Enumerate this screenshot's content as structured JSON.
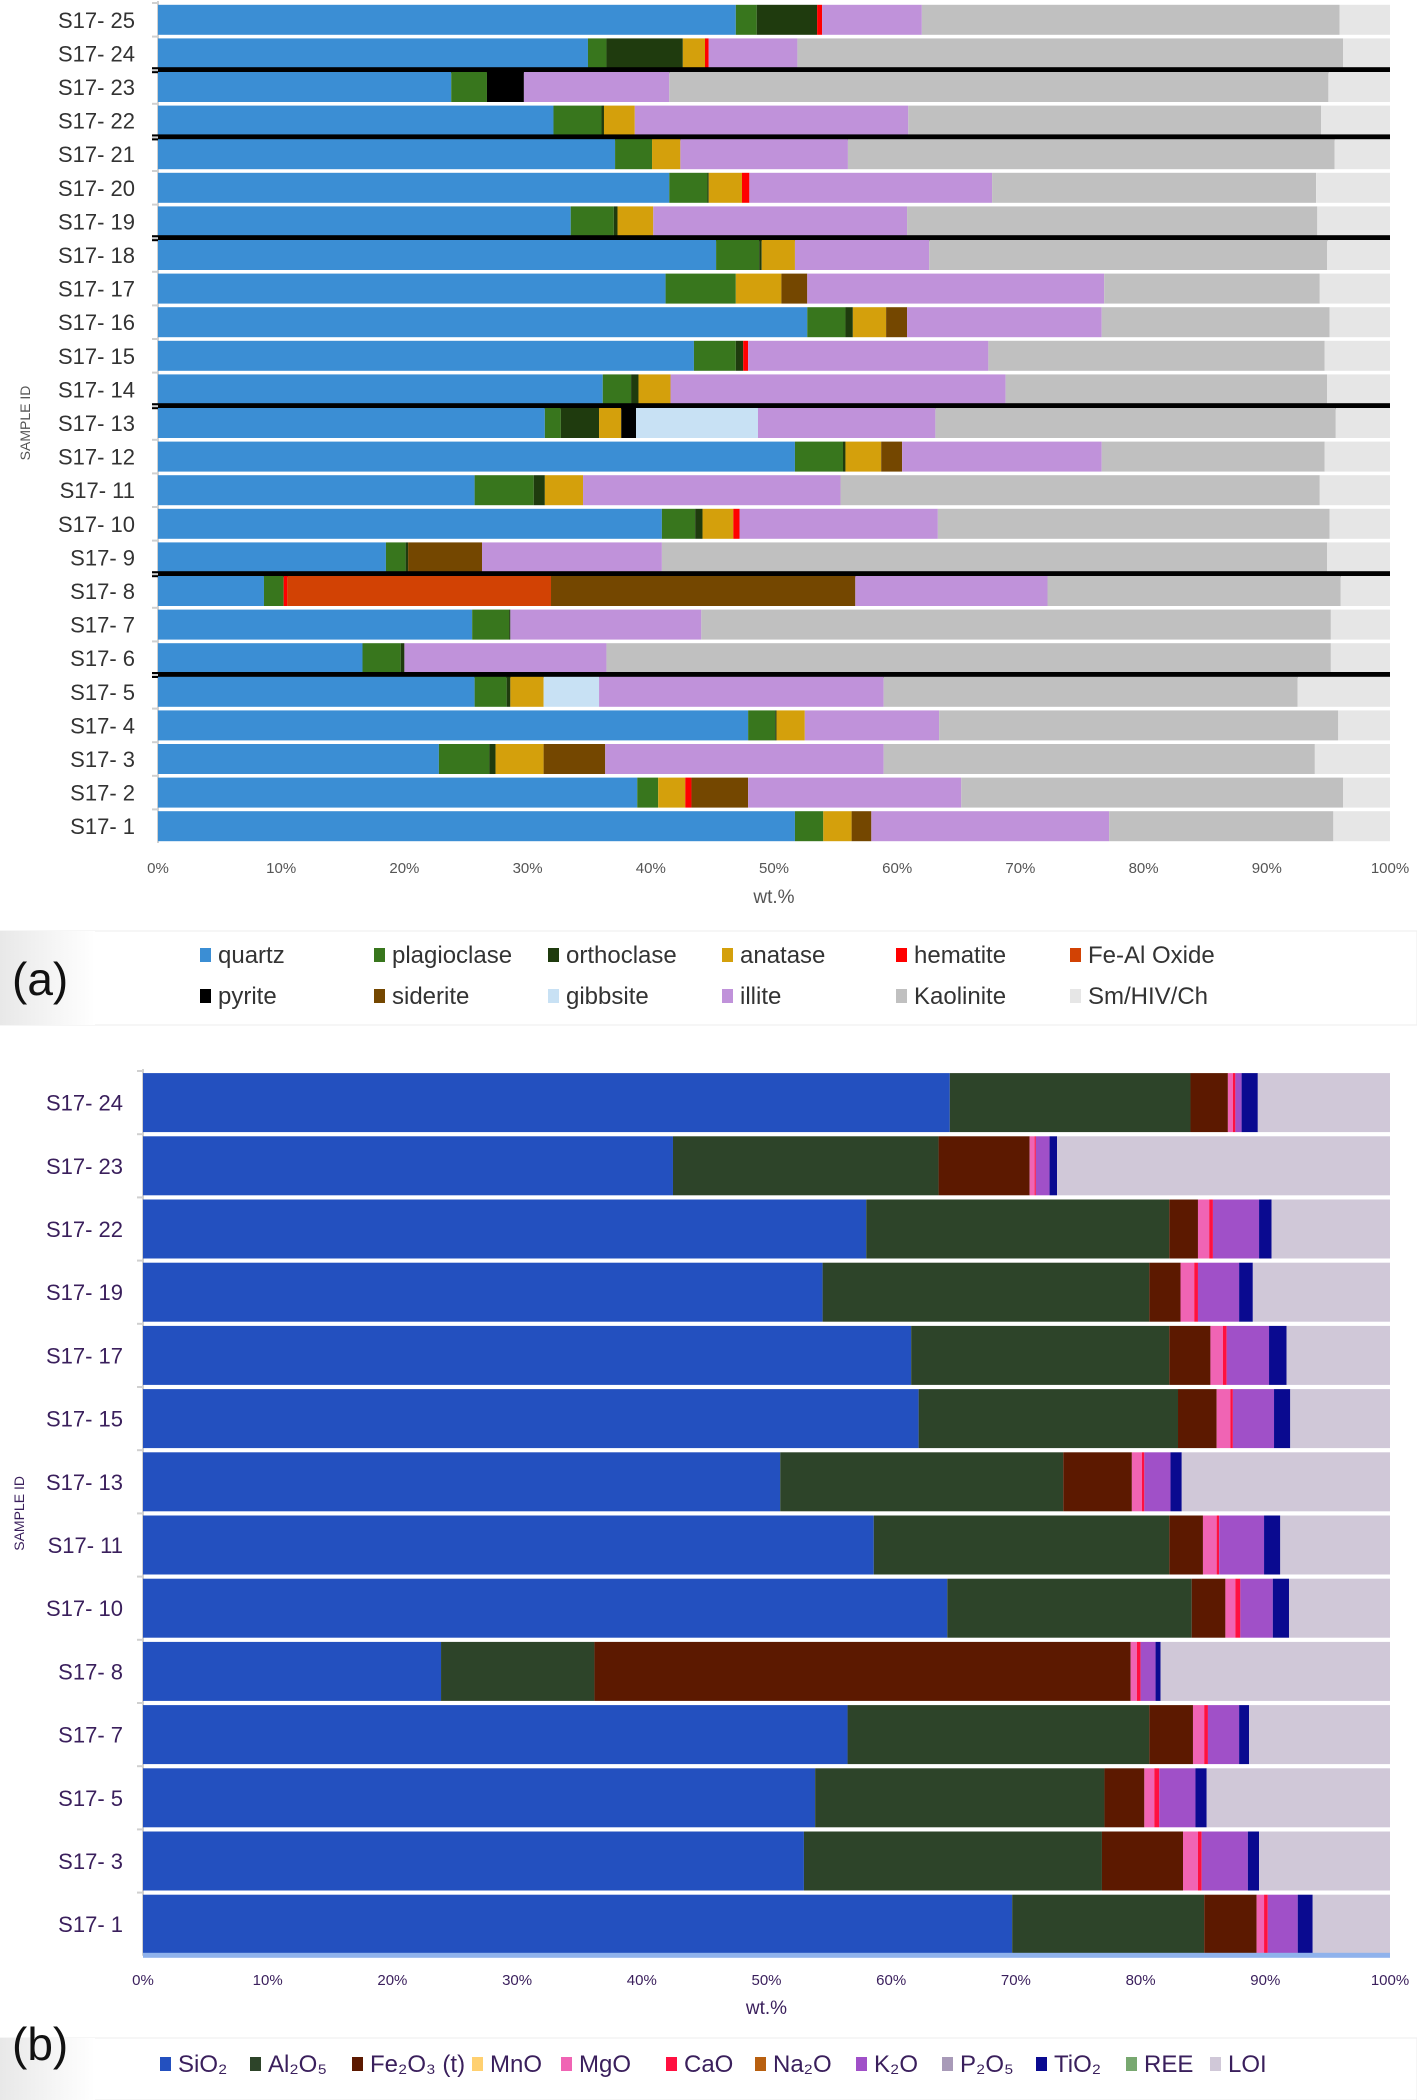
{
  "chart_data": [
    {
      "panel_label": "(a)",
      "type": "bar",
      "orientation": "horizontal",
      "stacked": true,
      "percent_stacked": true,
      "xlabel": "wt.%",
      "ylabel": "SAMPLE ID",
      "xlim": [
        0,
        100
      ],
      "xticks": [
        "0%",
        "10%",
        "20%",
        "30%",
        "40%",
        "50%",
        "60%",
        "70%",
        "80%",
        "90%",
        "100%"
      ],
      "legend_position": "bottom",
      "group_separators_after": [
        "S17- 24",
        "S17- 22",
        "S17- 19",
        "S17- 14",
        "S17- 9",
        "S17- 6"
      ],
      "categories": [
        "S17- 25",
        "S17- 24",
        "S17- 23",
        "S17- 22",
        "S17- 21",
        "S17- 20",
        "S17- 19",
        "S17- 18",
        "S17- 17",
        "S17- 16",
        "S17- 15",
        "S17- 14",
        "S17- 13",
        "S17- 12",
        "S17- 11",
        "S17- 10",
        "S17- 9",
        "S17- 8",
        "S17- 7",
        "S17- 6",
        "S17- 5",
        "S17- 4",
        "S17- 3",
        "S17- 2",
        "S17- 1"
      ],
      "series": [
        {
          "name": "quartz",
          "color": "#3b8ed4",
          "values": [
            46.9,
            34.9,
            23.8,
            32.1,
            37.1,
            41.5,
            33.5,
            45.3,
            41.2,
            52.7,
            43.5,
            36.1,
            31.4,
            51.7,
            25.7,
            40.9,
            18.5,
            8.6,
            25.5,
            16.6,
            25.7,
            47.9,
            22.8,
            38.9,
            51.7
          ]
        },
        {
          "name": "plagioclase",
          "color": "#38761d",
          "values": [
            1.7,
            1.5,
            2.9,
            3.9,
            3.0,
            3.1,
            3.5,
            3.5,
            5.7,
            3.1,
            3.4,
            2.3,
            1.3,
            3.9,
            4.8,
            2.7,
            1.6,
            1.6,
            3.0,
            3.1,
            2.6,
            2.2,
            4.1,
            1.7,
            2.3
          ]
        },
        {
          "name": "orthoclase",
          "color": "#1f3b0e",
          "values": [
            4.9,
            6.2,
            0,
            0.2,
            0,
            0.1,
            0.3,
            0.2,
            0,
            0.6,
            0.6,
            0.6,
            3.1,
            0.2,
            0.9,
            0.6,
            0.2,
            0,
            0.1,
            0.3,
            0.3,
            0.1,
            0.5,
            0,
            0
          ]
        },
        {
          "name": "anatase",
          "color": "#d4a00c",
          "values": [
            0,
            1.8,
            0,
            2.5,
            2.3,
            2.7,
            2.9,
            2.7,
            3.7,
            2.7,
            0,
            2.6,
            1.8,
            2.9,
            3.1,
            2.5,
            0,
            0,
            0,
            0,
            2.7,
            2.3,
            3.9,
            2.2,
            2.3
          ]
        },
        {
          "name": "hematite",
          "color": "#ff0000",
          "values": [
            0.4,
            0.3,
            0,
            0,
            0,
            0.6,
            0,
            0,
            0,
            0,
            0.4,
            0,
            0,
            0,
            0,
            0.5,
            0,
            0.3,
            0,
            0,
            0,
            0,
            0,
            0.5,
            0
          ]
        },
        {
          "name": "Fe-Al Oxide",
          "color": "#d24204",
          "values": [
            0,
            0,
            0,
            0,
            0,
            0,
            0,
            0,
            0,
            0,
            0,
            0,
            0,
            0,
            0,
            0,
            0,
            21.4,
            0,
            0,
            0,
            0,
            0,
            0,
            0
          ]
        },
        {
          "name": "pyrite",
          "color": "#000000",
          "values": [
            0,
            0,
            3.0,
            0,
            0,
            0,
            0,
            0,
            0,
            0,
            0,
            0,
            1.2,
            0,
            0,
            0,
            0,
            0,
            0,
            0,
            0,
            0,
            0,
            0,
            0
          ]
        },
        {
          "name": "siderite",
          "color": "#744700",
          "values": [
            0,
            0,
            0,
            0,
            0,
            0,
            0,
            0,
            2.1,
            1.7,
            0,
            0,
            0,
            1.7,
            0,
            0,
            6.0,
            24.7,
            0,
            0,
            0,
            0,
            5.0,
            4.6,
            1.6
          ]
        },
        {
          "name": "gibbsite",
          "color": "#c8e1f4",
          "values": [
            0,
            0,
            0,
            0,
            0,
            0,
            0,
            0,
            0,
            0,
            0,
            0,
            9.9,
            0,
            0,
            0,
            0,
            0,
            0,
            0,
            4.5,
            0,
            0,
            0,
            0
          ]
        },
        {
          "name": "illite",
          "color": "#c092da",
          "values": [
            8.1,
            7.2,
            11.8,
            22.2,
            13.6,
            19.7,
            20.6,
            10.9,
            24.1,
            15.8,
            19.5,
            27.2,
            14.4,
            16.2,
            20.9,
            16.1,
            14.6,
            15.6,
            15.5,
            16.4,
            23.1,
            10.9,
            22.6,
            17.3,
            19.3
          ]
        },
        {
          "name": "Kaolinite",
          "color": "#c0c0c0",
          "values": [
            33.9,
            44.3,
            53.5,
            33.5,
            39.5,
            26.3,
            33.3,
            32.3,
            17.5,
            18.5,
            27.3,
            26.1,
            32.5,
            18.1,
            38.9,
            31.8,
            54.0,
            23.8,
            51.1,
            58.8,
            33.6,
            32.4,
            35.0,
            31.0,
            18.2
          ]
        },
        {
          "name": "Sm/HIV/Ch",
          "color": "#e6e6e6",
          "values": [
            4.1,
            3.8,
            5.0,
            5.6,
            4.5,
            6.0,
            5.9,
            5.1,
            5.7,
            4.9,
            5.3,
            5.1,
            4.4,
            5.3,
            5.7,
            4.9,
            5.1,
            4.0,
            4.8,
            4.8,
            7.5,
            4.2,
            6.1,
            3.8,
            4.6
          ]
        }
      ]
    },
    {
      "panel_label": "(b)",
      "type": "bar",
      "orientation": "horizontal",
      "stacked": true,
      "percent_stacked": true,
      "xlabel": "wt.%",
      "ylabel": "SAMPLE ID",
      "xlim": [
        0,
        100
      ],
      "xticks": [
        "0%",
        "10%",
        "20%",
        "30%",
        "40%",
        "50%",
        "60%",
        "70%",
        "80%",
        "90%",
        "100%"
      ],
      "legend_position": "bottom",
      "categories": [
        "S17- 24",
        "S17- 23",
        "S17- 22",
        "S17- 19",
        "S17- 17",
        "S17- 15",
        "S17- 13",
        "S17- 11",
        "S17- 10",
        "S17- 8",
        "S17- 7",
        "S17- 5",
        "S17- 3",
        "S17- 1"
      ],
      "series": [
        {
          "name": "SiO₂",
          "color": "#2350bf",
          "values": [
            64.7,
            42.5,
            58.0,
            54.5,
            61.6,
            62.2,
            51.1,
            58.6,
            64.5,
            23.9,
            56.5,
            53.9,
            53.0,
            69.7
          ]
        },
        {
          "name": "Al₂O₅",
          "color": "#2d4429",
          "values": [
            19.3,
            21.3,
            24.3,
            26.2,
            20.7,
            20.8,
            22.7,
            23.7,
            19.6,
            12.3,
            24.2,
            23.2,
            23.9,
            15.4
          ]
        },
        {
          "name": "Fe₂O₃ (t)",
          "color": "#5c1900",
          "values": [
            3.0,
            7.3,
            2.3,
            2.5,
            3.3,
            3.1,
            5.5,
            2.7,
            2.7,
            43.0,
            3.5,
            3.2,
            6.5,
            4.2
          ]
        },
        {
          "name": "MnO",
          "color": "#ffd070",
          "values": [
            0,
            0,
            0,
            0,
            0,
            0,
            0,
            0,
            0,
            0,
            0,
            0,
            0,
            0
          ]
        },
        {
          "name": "MgO",
          "color": "#f064b4",
          "values": [
            0.4,
            0.4,
            0.9,
            1.1,
            1.0,
            1.1,
            0.8,
            1.1,
            0.8,
            0.5,
            0.9,
            0.8,
            1.2,
            0.6
          ]
        },
        {
          "name": "CaO",
          "color": "#ff1040",
          "values": [
            0.2,
            0.1,
            0.3,
            0.3,
            0.3,
            0.2,
            0.2,
            0.2,
            0.4,
            0.3,
            0.3,
            0.4,
            0.3,
            0.3
          ]
        },
        {
          "name": "Na₂O",
          "color": "#b86010",
          "values": [
            0,
            0,
            0,
            0,
            0,
            0,
            0,
            0,
            0,
            0,
            0,
            0,
            0,
            0
          ]
        },
        {
          "name": "K₂O",
          "color": "#a050c8",
          "values": [
            0.5,
            1.1,
            3.7,
            3.3,
            3.4,
            3.3,
            2.1,
            3.6,
            2.6,
            1.2,
            2.5,
            2.9,
            3.7,
            2.4
          ]
        },
        {
          "name": "P₂O₅",
          "color": "#a89ab8",
          "values": [
            0,
            0,
            0,
            0,
            0,
            0,
            0,
            0,
            0,
            0,
            0,
            0,
            0,
            0
          ]
        },
        {
          "name": "TiO₂",
          "color": "#0a0a90",
          "values": [
            1.3,
            0.6,
            1.0,
            1.1,
            1.4,
            1.3,
            0.9,
            1.3,
            1.3,
            0.4,
            0.8,
            0.9,
            0.9,
            1.2
          ]
        },
        {
          "name": "REE",
          "color": "#78a870",
          "values": [
            0,
            0,
            0,
            0,
            0,
            0,
            0,
            0,
            0,
            0,
            0,
            0,
            0,
            0
          ]
        },
        {
          "name": "LOI",
          "color": "#d0c8d8",
          "values": [
            10.6,
            26.7,
            9.5,
            11.0,
            8.3,
            8.0,
            16.7,
            8.8,
            8.1,
            18.4,
            11.3,
            14.7,
            10.5,
            6.2
          ]
        }
      ]
    }
  ]
}
